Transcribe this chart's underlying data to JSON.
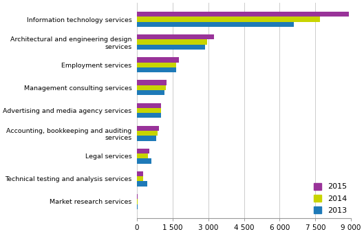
{
  "categories": [
    "Market research services",
    "Technical testing and analysis services",
    "Legal services",
    "Accounting, bookkeeping and auditing\nservices",
    "Advertising and media agency services",
    "Management consulting services",
    "Employment services",
    "Architectural and engineering design\nservices",
    "Information technology services"
  ],
  "values_2015": [
    30,
    270,
    530,
    920,
    1000,
    1250,
    1750,
    3250,
    8900
  ],
  "values_2014": [
    30,
    250,
    470,
    880,
    1000,
    1200,
    1650,
    2950,
    7700
  ],
  "values_2013": [
    30,
    430,
    620,
    820,
    1000,
    1150,
    1650,
    2850,
    6600
  ],
  "colors": {
    "2015": "#993399",
    "2014": "#c8d400",
    "2013": "#1e7ab8"
  },
  "xlim": [
    0,
    9000
  ],
  "xticks": [
    0,
    1500,
    3000,
    4500,
    6000,
    7500,
    9000
  ],
  "legend_loc": "lower right",
  "bar_height": 0.22,
  "figsize": [
    5.29,
    3.4
  ],
  "dpi": 100
}
